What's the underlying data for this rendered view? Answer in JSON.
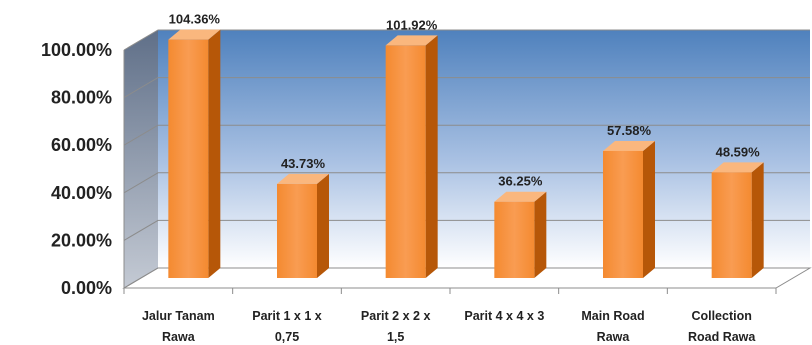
{
  "chart_data": {
    "type": "bar",
    "title": "",
    "xlabel": "",
    "ylabel": "",
    "ylim": [
      0,
      100
    ],
    "yticks": [
      0,
      20,
      40,
      60,
      80,
      100
    ],
    "ytick_labels": [
      "0.00%",
      "20.00%",
      "40.00%",
      "60.00%",
      "80.00%",
      "100.00%"
    ],
    "categories": [
      [
        "Jalur Tanam",
        "Rawa"
      ],
      [
        "Parit 1 x 1 x",
        "0,75"
      ],
      [
        "Parit 2 x 2 x",
        "1,5"
      ],
      [
        "Parit 4 x 4 x 3"
      ],
      [
        "Main Road",
        "Rawa"
      ],
      [
        "Collection",
        "Road Rawa"
      ]
    ],
    "values": [
      104.36,
      43.73,
      101.92,
      36.25,
      57.58,
      48.59
    ],
    "value_labels": [
      "104.36%",
      "43.73%",
      "101.92%",
      "36.25%",
      "57.58%",
      "48.59%"
    ],
    "grid": true,
    "style": "3d-column",
    "colors": {
      "bar_front": "#f79646",
      "bar_side": "#b65708",
      "bar_top": "#fab77e",
      "back_wall_top": "#4f81bd",
      "back_wall_bottom": "#ffffff",
      "side_wall": "#7f8fa6",
      "grid": "#8c8c8c"
    }
  }
}
